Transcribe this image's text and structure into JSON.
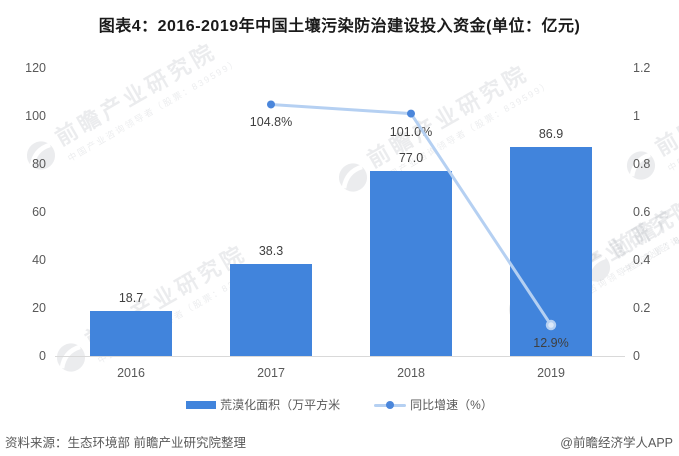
{
  "title": "图表4：2016-2019年中国土壤污染防治建设投入资金(单位：亿元)",
  "colors": {
    "bar": "#4184dc",
    "line": "#b5d0f2",
    "marker": "#4a86db",
    "marker_last_fill": "#dbe8f9",
    "label_text": "#3f3f3f",
    "axis_text": "#595959",
    "axis_line": "#d9d9d9"
  },
  "chart_data": {
    "type": "bar+line",
    "title": "图表4：2016-2019年中国土壤污染防治建设投入资金(单位：亿元)",
    "categories": [
      "2016",
      "2017",
      "2018",
      "2019"
    ],
    "series": [
      {
        "name": "荒漠化面积（万平方米",
        "type": "bar",
        "axis": "left",
        "values": [
          18.7,
          38.3,
          77.0,
          86.9
        ],
        "labels": [
          "18.7",
          "38.3",
          "77.0",
          "86.9"
        ]
      },
      {
        "name": "同比增速（%）",
        "type": "line",
        "axis": "right",
        "values": [
          null,
          1.048,
          1.01,
          0.129
        ],
        "labels": [
          "",
          "104.8%",
          "101.0%",
          "12.9%"
        ]
      }
    ],
    "left_axis": {
      "min": 0,
      "max": 120,
      "ticks": [
        0,
        20,
        40,
        60,
        80,
        100,
        120
      ],
      "labels": [
        "0",
        "20",
        "40",
        "60",
        "80",
        "100",
        "120"
      ]
    },
    "right_axis": {
      "min": 0,
      "max": 1.2,
      "ticks": [
        0,
        0.2,
        0.4,
        0.6,
        0.8,
        1,
        1.2
      ],
      "labels": [
        "0",
        "0.2",
        "0.4",
        "0.6",
        "0.8",
        "1",
        "1.2"
      ]
    },
    "grid": false,
    "legend_position": "bottom"
  },
  "legend": {
    "items": [
      {
        "label": "荒漠化面积（万平方米",
        "marker": "bar"
      },
      {
        "label": "同比增速（%）",
        "marker": "line"
      }
    ]
  },
  "watermark": {
    "text": "前瞻产业研究院",
    "subtext": "中国产业咨询领导者（股票：839599）"
  },
  "footer": {
    "source": "资料来源：生态环境部 前瞻产业研究院整理",
    "brand": "@前瞻经济学人APP"
  }
}
